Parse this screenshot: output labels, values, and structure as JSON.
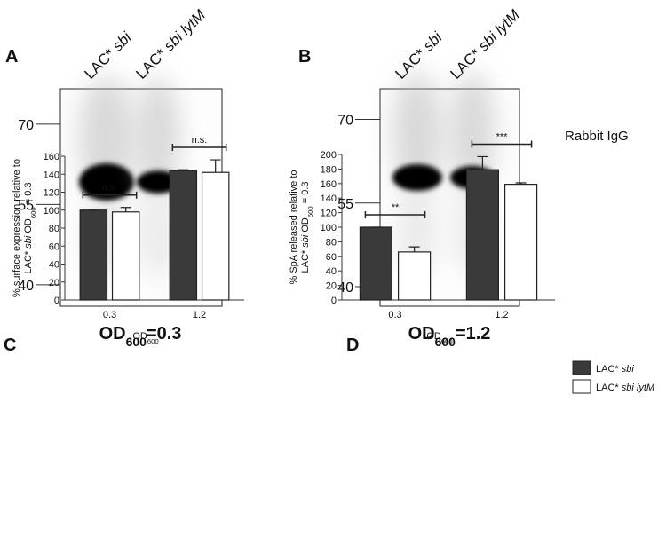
{
  "blots": [
    {
      "letter": "A",
      "lanes": [
        "LAC* sbi",
        "LAC* sbi lytM"
      ],
      "markers": [
        70,
        55,
        40
      ],
      "ylim": [
        36,
        76.6
      ],
      "od": "OD600=0.3"
    },
    {
      "letter": "B",
      "lanes": [
        "LAC* sbi",
        "LAC* sbi lytM"
      ],
      "markers": [
        70,
        55,
        40
      ],
      "ylim": [
        36.5,
        75.5
      ],
      "od": "OD600=1.2"
    }
  ],
  "blot_label": "Rabbit IgG",
  "chart_data": [
    {
      "type": "bar",
      "letter": "C",
      "ylabel": [
        "% surface expression relative to",
        "LAC* sbi OD600 = 0.3"
      ],
      "xlabel": "OD600",
      "categories": [
        "0.3",
        "1.2"
      ],
      "series": [
        {
          "name": "LAC* sbi",
          "color": "#3a3a3a",
          "values": [
            100,
            144
          ],
          "errors": [
            0,
            1
          ]
        },
        {
          "name": "LAC* sbi lytM",
          "color": "#ffffff",
          "values": [
            98,
            142
          ],
          "errors": [
            5,
            14
          ]
        }
      ],
      "significance": [
        "n.s.",
        "n.s."
      ],
      "ylim": [
        0,
        160
      ],
      "yticks": [
        0,
        20,
        40,
        60,
        80,
        100,
        120,
        140,
        160
      ]
    },
    {
      "type": "bar",
      "letter": "D",
      "ylabel": [
        "% SpA released relative to",
        "LAC* sbi OD600 = 0.3"
      ],
      "xlabel": "OD600",
      "categories": [
        "0.3",
        "1.2"
      ],
      "series": [
        {
          "name": "LAC* sbi",
          "color": "#3a3a3a",
          "values": [
            100,
            179
          ],
          "errors": [
            0,
            18
          ]
        },
        {
          "name": "LAC* sbi lytM",
          "color": "#ffffff",
          "values": [
            66,
            159
          ],
          "errors": [
            7,
            2
          ]
        }
      ],
      "significance": [
        "**",
        "***"
      ],
      "ylim": [
        0,
        200
      ],
      "yticks": [
        0,
        20,
        40,
        60,
        80,
        100,
        120,
        140,
        160,
        180,
        200
      ],
      "legend": "right"
    }
  ]
}
